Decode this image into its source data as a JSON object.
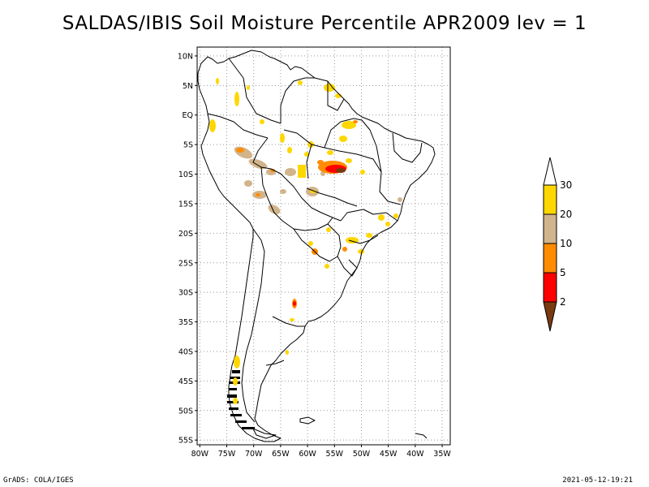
{
  "title": "SALDAS/IBIS Soil Moisture Percentile APR2009 lev = 1",
  "footer": {
    "left": "GrADS: COLA/IGES",
    "right": "2021-05-12-19:21"
  },
  "axes": {
    "lat_labels": [
      "10N",
      "5N",
      "EQ",
      "5S",
      "10S",
      "15S",
      "20S",
      "25S",
      "30S",
      "35S",
      "40S",
      "45S",
      "50S",
      "55S"
    ],
    "lat_values": [
      10,
      5,
      0,
      -5,
      -10,
      -15,
      -20,
      -25,
      -30,
      -35,
      -40,
      -45,
      -50,
      -55
    ],
    "lon_labels": [
      "80W",
      "75W",
      "70W",
      "65W",
      "60W",
      "55W",
      "50W",
      "45W",
      "40W",
      "35W"
    ],
    "lon_values": [
      -80,
      -75,
      -70,
      -65,
      -60,
      -55,
      -50,
      -45,
      -40,
      -35
    ],
    "lon_range": [
      -80.5,
      -33.5
    ],
    "lat_range": [
      -55.8,
      11.5
    ]
  },
  "colorbar": {
    "labels": [
      "2",
      "5",
      "10",
      "20",
      "30"
    ],
    "colors": [
      "#7a3a10",
      "#ff0000",
      "#ff8c00",
      "#d2b48c",
      "#ffd700",
      "#ffffff"
    ]
  },
  "colors": {
    "p30": "#ffd700",
    "p20": "#d2b48c",
    "p10": "#ff8c00",
    "p5": "#ff0000",
    "p2": "#7a3a10"
  }
}
